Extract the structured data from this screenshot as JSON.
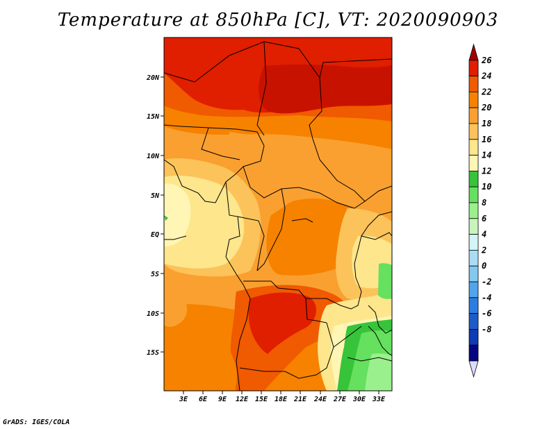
{
  "title": "Temperature at 850hPa [C], VT: 2020090903",
  "credit": "GrADS: IGES/COLA",
  "map": {
    "lat_labels": [
      "20N",
      "15N",
      "10N",
      "5N",
      "EQ",
      "5S",
      "10S",
      "15S"
    ],
    "lon_labels": [
      "3E",
      "6E",
      "9E",
      "12E",
      "15E",
      "18E",
      "21E",
      "24E",
      "27E",
      "30E",
      "33E"
    ]
  },
  "colorbar": {
    "labels": [
      "26",
      "24",
      "22",
      "20",
      "18",
      "16",
      "14",
      "12",
      "10",
      "8",
      "6",
      "4",
      "2",
      "0",
      "-2",
      "-4",
      "-6",
      "-8"
    ],
    "colors": [
      "#a00000",
      "#e01e00",
      "#f05a00",
      "#f68200",
      "#f9a030",
      "#fbc35a",
      "#fde68c",
      "#fff5b4",
      "#37c43a",
      "#66e05f",
      "#9af08c",
      "#c8f5bc",
      "#d2f5f5",
      "#aadcf5",
      "#82c8f0",
      "#50a5eb",
      "#2b7de1",
      "#1e5ac8",
      "#0f3cb4",
      "#060682",
      "#dcdcff"
    ]
  }
}
